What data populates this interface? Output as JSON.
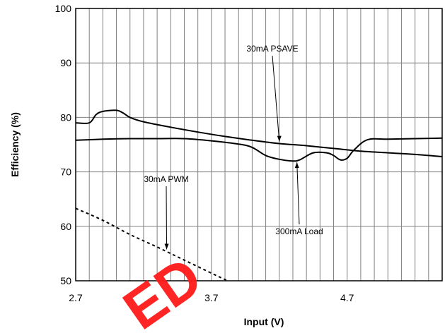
{
  "chart_data": {
    "type": "line",
    "title": "",
    "xlabel": "Input (V)",
    "ylabel": "Efficiency (%)",
    "xlim": [
      2.7,
      5.4
    ],
    "ylim": [
      50,
      100
    ],
    "xticks": [
      2.7,
      3.7,
      4.7
    ],
    "xtick_labels": [
      "2.7",
      "3.7",
      "4.7"
    ],
    "yticks": [
      50,
      60,
      70,
      80,
      90,
      100
    ],
    "ytick_labels": [
      "50",
      "60",
      "70",
      "80",
      "90",
      "100"
    ],
    "grid": true,
    "series": [
      {
        "name": "30mA PSAVE",
        "style": "solid",
        "x": [
          2.7,
          2.8,
          2.85,
          2.9,
          3.0,
          3.05,
          3.1,
          3.2,
          3.4,
          3.6,
          3.8,
          4.0,
          4.2,
          4.4,
          4.6,
          4.8,
          5.0,
          5.2,
          5.4
        ],
        "y": [
          79.0,
          79.0,
          80.5,
          81.1,
          81.3,
          80.8,
          80.0,
          79.2,
          78.2,
          77.3,
          76.5,
          75.8,
          75.2,
          74.8,
          74.3,
          73.8,
          73.5,
          73.2,
          72.8
        ]
      },
      {
        "name": "300mA Load",
        "style": "solid",
        "x": [
          2.7,
          2.9,
          3.1,
          3.3,
          3.5,
          3.7,
          3.9,
          4.0,
          4.1,
          4.2,
          4.3,
          4.35,
          4.45,
          4.55,
          4.6,
          4.65,
          4.7,
          4.75,
          4.85,
          5.0,
          5.2,
          5.4
        ],
        "y": [
          75.8,
          76.0,
          76.1,
          76.1,
          76.1,
          75.7,
          75.1,
          74.5,
          73.0,
          72.3,
          72.0,
          72.2,
          73.5,
          73.5,
          73.0,
          72.2,
          72.5,
          74.0,
          75.9,
          76.0,
          76.1,
          76.2
        ]
      },
      {
        "name": "30mA PWM",
        "style": "dashed",
        "x": [
          2.7,
          2.9,
          3.1,
          3.3,
          3.5,
          3.7,
          3.82
        ],
        "y": [
          63.3,
          61.1,
          58.5,
          56.2,
          53.8,
          51.4,
          50.0
        ]
      }
    ],
    "annotations": [
      {
        "text": "30mA PSAVE",
        "target": [
          4.2,
          75.3
        ]
      },
      {
        "text": "300mA Load",
        "target": [
          4.33,
          72.0
        ]
      },
      {
        "text": "30mA PWM",
        "target": [
          3.37,
          55.5
        ]
      }
    ]
  },
  "watermark": {
    "text": "ED",
    "color": "#ff1a1a"
  }
}
